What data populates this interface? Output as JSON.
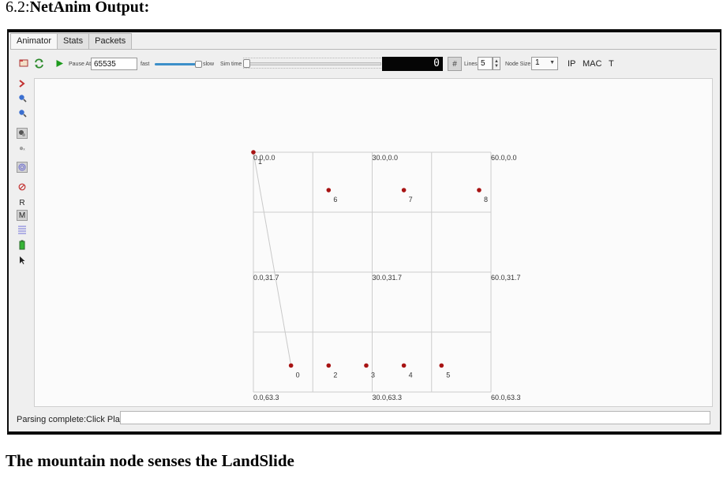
{
  "document": {
    "section_number": "6.2:",
    "section_title": "NetAnim Output:",
    "caption": "The mountain node senses the LandSlide"
  },
  "tabs": [
    "Animator",
    "Stats",
    "Packets"
  ],
  "active_tab": "Animator",
  "toolbar": {
    "pause_at_label": "Pause At",
    "pause_at_value": "65535",
    "speed_fast_label": "fast",
    "speed_slow_label": "slow",
    "speed_level": 0.92,
    "sim_time_label": "Sim time",
    "sim_time_level": 0.0,
    "sim_time_display": "0",
    "lines_label": "Lines",
    "lines_value": "5",
    "node_size_label": "Node Size",
    "node_size_value": "1",
    "ip_label": "IP",
    "mac_label": "MAC",
    "t_label": "T",
    "icons": [
      "open-file-icon",
      "reload-icon",
      "play-icon",
      "grid-icon",
      "spin-arrows-icon",
      "dropdown-arrow-icon"
    ]
  },
  "left_toolbar": {
    "icons": [
      "fast-forward-icon",
      "zoom-in-icon",
      "zoom-out-icon",
      "node-icon",
      "position-icon",
      "fingerprint-icon",
      "no-entry-icon",
      "resources-icon",
      "mobility-icon",
      "queue-icon",
      "battery-icon",
      "pointer-icon"
    ],
    "r_label": "R",
    "m_label": "M"
  },
  "canvas": {
    "grid_labels": [
      {
        "text": "0.0,0.0",
        "x": 0,
        "y": 0
      },
      {
        "text": "30.0,0.0",
        "x": 30,
        "y": 0
      },
      {
        "text": "60.0,0.0",
        "x": 60,
        "y": 0
      },
      {
        "text": "0.0,31.7",
        "x": 0,
        "y": 31.7
      },
      {
        "text": "30.0,31.7",
        "x": 30,
        "y": 31.7
      },
      {
        "text": "60.0,31.7",
        "x": 60,
        "y": 31.7
      },
      {
        "text": "0.0,63.3",
        "x": 0,
        "y": 63.3
      },
      {
        "text": "30.0,63.3",
        "x": 30,
        "y": 63.3
      },
      {
        "text": "60.0,63.3",
        "x": 60,
        "y": 63.3
      }
    ],
    "x_range": [
      0,
      60
    ],
    "y_range": [
      0,
      63.3
    ],
    "grid_lines": 5,
    "node_color": "#a81414",
    "link_color": "#c9c9c9",
    "nodes": [
      {
        "id": "0",
        "x": 9.5,
        "y": 56.3
      },
      {
        "id": "1",
        "x": 0,
        "y": 0
      },
      {
        "id": "2",
        "x": 19,
        "y": 56.3
      },
      {
        "id": "3",
        "x": 28.5,
        "y": 56.3
      },
      {
        "id": "4",
        "x": 38,
        "y": 56.3
      },
      {
        "id": "5",
        "x": 47.5,
        "y": 56.3
      },
      {
        "id": "6",
        "x": 19,
        "y": 10
      },
      {
        "id": "7",
        "x": 38,
        "y": 10
      },
      {
        "id": "8",
        "x": 57,
        "y": 10
      }
    ],
    "links": [
      [
        "1",
        "0"
      ]
    ]
  },
  "status": {
    "message": "Parsing complete:Click Play",
    "field_value": ""
  }
}
